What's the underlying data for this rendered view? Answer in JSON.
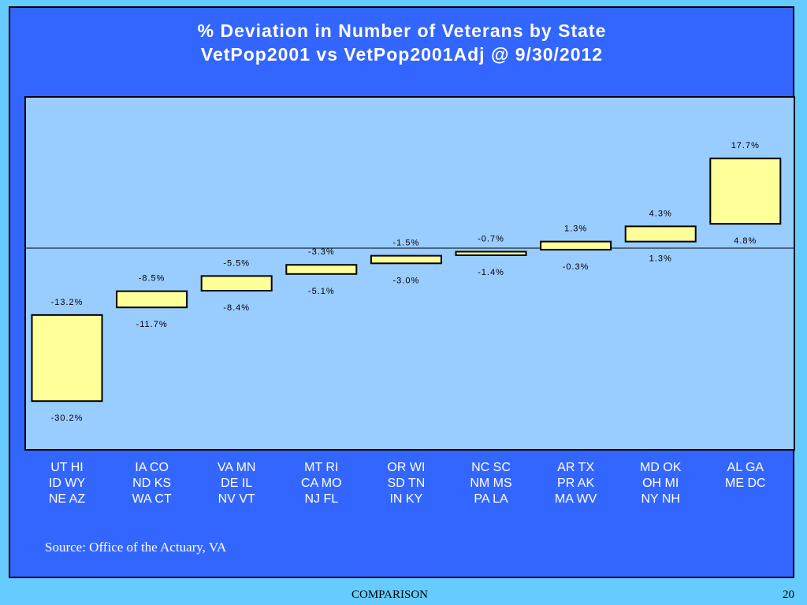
{
  "slide": {
    "source": "Source:  Office of the Actuary, VA",
    "footer_label": "COMPARISON",
    "page_number": "20"
  },
  "chart_data": {
    "type": "bar",
    "title": "% Deviation in Number of Veterans by State",
    "subtitle": "VetPop2001 vs VetPop2001Adj @ 9/30/2012",
    "ylim": [
      -33,
      22
    ],
    "zero_line": true,
    "colors": {
      "box_fill": "#ffff99",
      "box_stroke": "#000000",
      "plot_bg": "#99ccff",
      "panel_bg": "#3366ff"
    },
    "categories": [
      {
        "lines": [
          "UT HI",
          "ID WY",
          "NE AZ"
        ],
        "low": -30.2,
        "high": -13.2,
        "low_label": "-30.2%",
        "high_label": "-13.2%"
      },
      {
        "lines": [
          "IA CO",
          "ND KS",
          "WA CT"
        ],
        "low": -11.7,
        "high": -8.5,
        "low_label": "-11.7%",
        "high_label": "-8.5%"
      },
      {
        "lines": [
          "VA MN",
          "DE IL",
          "NV VT"
        ],
        "low": -8.4,
        "high": -5.5,
        "low_label": "-8.4%",
        "high_label": "-5.5%"
      },
      {
        "lines": [
          "MT RI",
          "CA MO",
          "NJ FL"
        ],
        "low": -5.1,
        "high": -3.3,
        "low_label": "-5.1%",
        "high_label": "-3.3%"
      },
      {
        "lines": [
          "OR WI",
          "SD TN",
          "IN KY"
        ],
        "low": -3.0,
        "high": -1.5,
        "low_label": "-3.0%",
        "high_label": "-1.5%"
      },
      {
        "lines": [
          "NC SC",
          "NM MS",
          "PA LA"
        ],
        "low": -1.4,
        "high": -0.7,
        "low_label": "-1.4%",
        "high_label": "-0.7%"
      },
      {
        "lines": [
          "AR TX",
          "PR AK",
          "MA WV"
        ],
        "low": -0.3,
        "high": 1.3,
        "low_label": "-0.3%",
        "high_label": "1.3%"
      },
      {
        "lines": [
          "MD OK",
          "OH MI",
          "NY NH"
        ],
        "low": 1.3,
        "high": 4.3,
        "low_label": "1.3%",
        "high_label": "4.3%"
      },
      {
        "lines": [
          "AL GA",
          "ME DC"
        ],
        "low": 4.8,
        "high": 17.7,
        "low_label": "4.8%",
        "high_label": "17.7%"
      }
    ]
  }
}
